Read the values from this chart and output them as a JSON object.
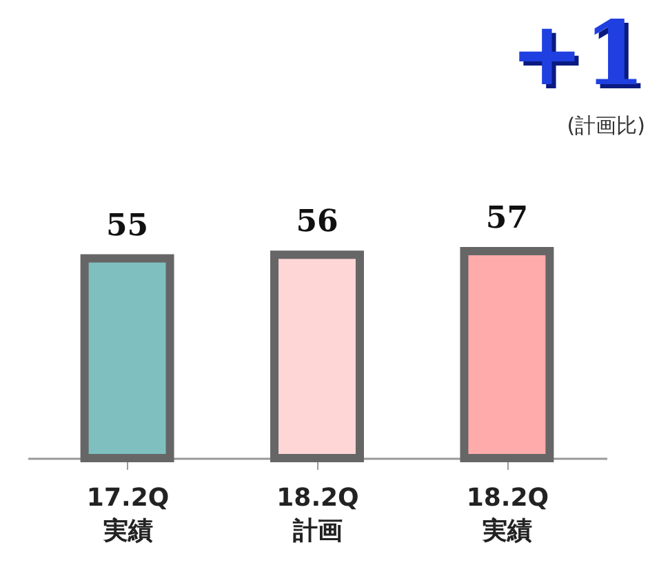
{
  "chart_data": {
    "type": "bar",
    "categories": [
      "17.2Q\n実績",
      "18.2Q\n計画",
      "18.2Q\n実績"
    ],
    "values": [
      55,
      56,
      57
    ],
    "colors": [
      "#7fbfc0",
      "#ffd6d6",
      "#ffabab"
    ],
    "data_labels": true,
    "grid": false,
    "legend": false,
    "annotations": [
      "+1",
      "(計画比)"
    ]
  }
}
